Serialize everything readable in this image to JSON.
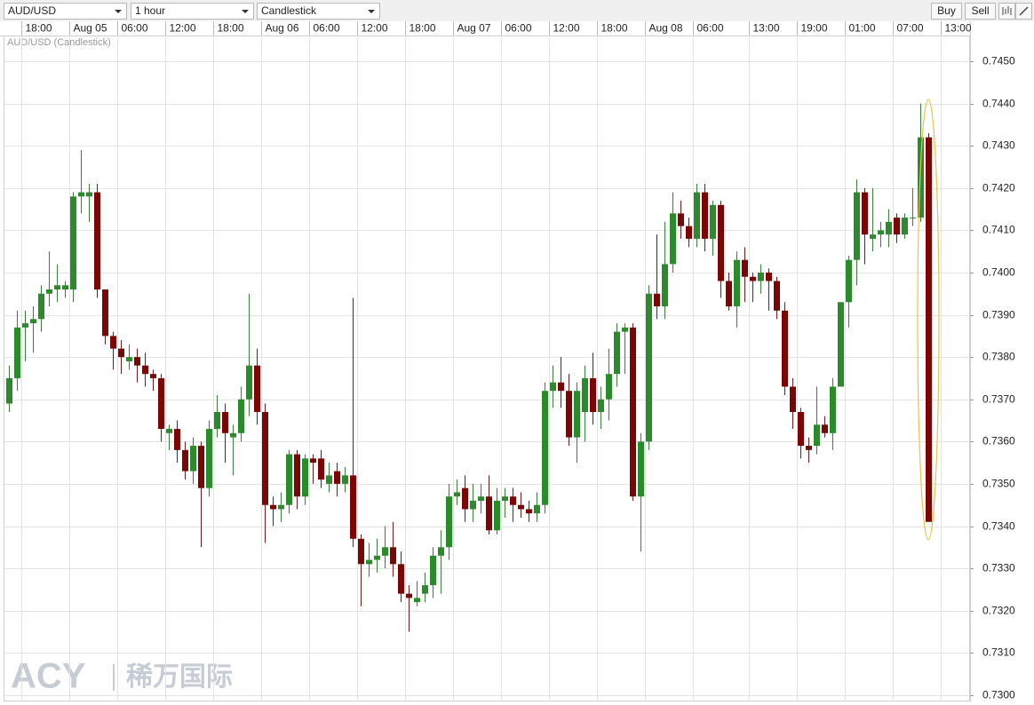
{
  "toolbar": {
    "symbol": "AUD/USD",
    "interval": "1 hour",
    "chart_style": "Candlestick",
    "buy": "Buy",
    "sell": "Sell"
  },
  "watermark": {
    "brand": "ACY",
    "name": "稀万国际"
  },
  "chart_data": {
    "type": "candlestick",
    "title": "AUD/USD (Candlestick)",
    "up_color": "#2b8a2b",
    "down_color": "#7a0606",
    "grid": true,
    "ylim": [
      0.72985,
      0.74561
    ],
    "yticks": [
      {
        "value": 0.73,
        "label": "0.7300"
      },
      {
        "value": 0.731,
        "label": "0.7310"
      },
      {
        "value": 0.732,
        "label": "0.7320"
      },
      {
        "value": 0.733,
        "label": "0.7330"
      },
      {
        "value": 0.734,
        "label": "0.7340"
      },
      {
        "value": 0.735,
        "label": "0.7350"
      },
      {
        "value": 0.736,
        "label": "0.7360"
      },
      {
        "value": 0.737,
        "label": "0.7370"
      },
      {
        "value": 0.738,
        "label": "0.7380"
      },
      {
        "value": 0.739,
        "label": "0.7390"
      },
      {
        "value": 0.74,
        "label": "0.7400"
      },
      {
        "value": 0.741,
        "label": "0.7410"
      },
      {
        "value": 0.742,
        "label": "0.7420"
      },
      {
        "value": 0.743,
        "label": "0.7430"
      },
      {
        "value": 0.744,
        "label": "0.7440"
      },
      {
        "value": 0.745,
        "label": "0.7450"
      }
    ],
    "categories": [
      null,
      null,
      "18:00",
      null,
      null,
      null,
      null,
      null,
      "Aug 05",
      null,
      null,
      null,
      null,
      null,
      "06:00",
      null,
      null,
      null,
      null,
      null,
      "12:00",
      null,
      null,
      null,
      null,
      null,
      "18:00",
      null,
      null,
      null,
      null,
      null,
      "Aug 06",
      null,
      null,
      null,
      null,
      null,
      "06:00",
      null,
      null,
      null,
      null,
      null,
      "12:00",
      null,
      null,
      null,
      null,
      null,
      "18:00",
      null,
      null,
      null,
      null,
      null,
      "Aug 07",
      null,
      null,
      null,
      null,
      null,
      "06:00",
      null,
      null,
      null,
      null,
      null,
      "12:00",
      null,
      null,
      null,
      null,
      null,
      "18:00",
      null,
      null,
      null,
      null,
      null,
      "Aug 08",
      null,
      null,
      null,
      null,
      null,
      "06:00",
      null,
      null,
      null,
      null,
      null,
      null,
      "13:00",
      null,
      null,
      null,
      null,
      null,
      "19:00",
      null,
      null,
      null,
      null,
      null,
      "01:00",
      null,
      null,
      null,
      null,
      null,
      "07:00",
      null,
      null,
      null,
      null,
      null,
      "13:00"
    ],
    "open": [
      0.7369,
      0.7375,
      0.7387,
      0.7388,
      0.7389,
      0.7395,
      0.7396,
      0.7396,
      0.7396,
      0.7418,
      0.7418,
      0.7419,
      0.7396,
      0.7385,
      0.7382,
      0.7379,
      0.738,
      0.7378,
      0.7376,
      0.7375,
      0.7362,
      0.7363,
      0.7358,
      0.7353,
      0.7359,
      0.7349,
      0.7363,
      0.7367,
      0.7361,
      0.7362,
      0.737,
      0.7378,
      0.7367,
      0.7345,
      0.7344,
      0.7345,
      0.7357,
      0.7347,
      0.7356,
      0.7356,
      0.735,
      0.7353,
      0.735,
      0.7352,
      0.7337,
      0.7331,
      0.7332,
      0.7333,
      0.7335,
      0.7331,
      0.7324,
      0.7322,
      0.7324,
      0.7326,
      0.7333,
      0.7335,
      0.7347,
      0.7349,
      0.7344,
      0.7346,
      0.7347,
      0.7339,
      0.7346,
      0.7347,
      0.7345,
      0.7344,
      0.7343,
      0.7345,
      0.7372,
      0.7374,
      0.7372,
      0.7361,
      0.7367,
      0.7375,
      0.7367,
      0.737,
      0.7376,
      0.7386,
      0.7387,
      0.7347,
      0.736,
      0.7395,
      0.7392,
      0.7402,
      0.7414,
      0.7411,
      0.7408,
      0.7419,
      0.7408,
      0.7416,
      0.7398,
      0.7392,
      0.7403,
      0.7399,
      0.7398,
      0.74,
      0.7398,
      0.7391,
      0.7373,
      0.7367,
      0.7359,
      0.7359,
      0.7364,
      0.7362,
      0.7373,
      0.7393,
      0.7403,
      0.7419,
      0.7408,
      0.7409,
      0.7409,
      0.7413,
      0.7409,
      0.7413,
      0.7413,
      0.7432,
      null,
      null
    ],
    "high": [
      0.7378,
      0.7391,
      0.7391,
      0.7392,
      0.7397,
      0.7405,
      0.7402,
      0.7398,
      0.7419,
      0.7429,
      0.7421,
      0.7421,
      0.7396,
      0.7386,
      0.7384,
      0.7383,
      0.7382,
      0.7381,
      0.7377,
      0.7376,
      0.7364,
      0.7365,
      0.736,
      0.7361,
      0.736,
      0.7365,
      0.7371,
      0.7369,
      0.7364,
      0.7373,
      0.7395,
      0.7382,
      0.7369,
      0.7347,
      0.7348,
      0.7358,
      0.7358,
      0.7357,
      0.7357,
      0.7358,
      0.7355,
      0.7355,
      0.7354,
      0.7394,
      0.7338,
      0.7336,
      0.7337,
      0.734,
      0.7341,
      0.7334,
      0.7326,
      0.7327,
      0.7329,
      0.7335,
      0.7339,
      0.735,
      0.7351,
      0.7352,
      0.735,
      0.735,
      0.7352,
      0.7349,
      0.7349,
      0.7349,
      0.7348,
      0.7346,
      0.7348,
      0.7374,
      0.7378,
      0.738,
      0.7376,
      0.7374,
      0.7378,
      0.7381,
      0.7373,
      0.7382,
      0.7388,
      0.7388,
      0.7388,
      0.7362,
      0.7397,
      0.7409,
      0.7412,
      0.7419,
      0.7417,
      0.7413,
      0.7421,
      0.7421,
      0.7417,
      0.7417,
      0.74,
      0.7405,
      0.7406,
      0.74,
      0.7402,
      0.7401,
      0.7399,
      0.7393,
      0.7375,
      0.7368,
      0.7361,
      0.7373,
      0.7366,
      0.7375,
      0.7393,
      0.7404,
      0.7422,
      0.742,
      0.742,
      0.7412,
      0.7415,
      0.7414,
      0.7414,
      0.742,
      0.744,
      0.7433,
      null,
      null
    ],
    "low": [
      0.7367,
      0.7372,
      0.7379,
      0.7381,
      0.7386,
      0.7392,
      0.7393,
      0.7394,
      0.7393,
      0.7414,
      0.7412,
      0.7394,
      0.7383,
      0.7377,
      0.7376,
      0.7377,
      0.7374,
      0.7373,
      0.7372,
      0.736,
      0.7358,
      0.7355,
      0.7351,
      0.735,
      0.7335,
      0.7347,
      0.7361,
      0.7355,
      0.7352,
      0.736,
      0.7366,
      0.7364,
      0.7336,
      0.734,
      0.7341,
      0.7343,
      0.7344,
      0.7345,
      0.735,
      0.7349,
      0.7348,
      0.7347,
      0.7348,
      0.7335,
      0.7321,
      0.7328,
      0.7329,
      0.733,
      0.7328,
      0.7322,
      0.7315,
      0.7321,
      0.7322,
      0.7323,
      0.7324,
      0.7332,
      0.7345,
      0.7341,
      0.7341,
      0.7343,
      0.7338,
      0.7338,
      0.7342,
      0.7341,
      0.7342,
      0.7341,
      0.7341,
      0.7343,
      0.7368,
      0.7368,
      0.7359,
      0.7355,
      0.736,
      0.7364,
      0.7363,
      0.7365,
      0.7373,
      0.7376,
      0.7346,
      0.7334,
      0.7358,
      0.7389,
      0.7389,
      0.74,
      0.7408,
      0.7406,
      0.7406,
      0.7405,
      0.7404,
      0.7394,
      0.7391,
      0.7387,
      0.7393,
      0.7393,
      0.7395,
      0.7391,
      0.7389,
      0.7371,
      0.7363,
      0.7356,
      0.7355,
      0.7357,
      0.7361,
      0.7358,
      0.7373,
      0.7387,
      0.7397,
      0.7402,
      0.7405,
      0.7406,
      0.7406,
      0.7407,
      0.7408,
      0.7411,
      0.7412,
      0.7341,
      null,
      null
    ],
    "close": [
      0.7375,
      0.7387,
      0.7388,
      0.7389,
      0.7395,
      0.7396,
      0.7397,
      0.7397,
      0.7418,
      0.7419,
      0.7419,
      0.7396,
      0.7385,
      0.7382,
      0.738,
      0.738,
      0.7378,
      0.7376,
      0.7375,
      0.7363,
      0.7363,
      0.7358,
      0.7353,
      0.7359,
      0.7349,
      0.7363,
      0.7367,
      0.7362,
      0.7362,
      0.737,
      0.7378,
      0.7367,
      0.7345,
      0.7344,
      0.7345,
      0.7357,
      0.7347,
      0.7356,
      0.7355,
      0.7351,
      0.7352,
      0.735,
      0.7352,
      0.7337,
      0.7331,
      0.7332,
      0.7333,
      0.7335,
      0.7331,
      0.7324,
      0.7323,
      0.7323,
      0.7326,
      0.7333,
      0.7335,
      0.7347,
      0.7348,
      0.7344,
      0.7346,
      0.7347,
      0.7339,
      0.7346,
      0.7347,
      0.7345,
      0.7344,
      0.7343,
      0.7345,
      0.7372,
      0.7374,
      0.7372,
      0.7361,
      0.7372,
      0.7375,
      0.7367,
      0.737,
      0.7376,
      0.7386,
      0.7387,
      0.7347,
      0.736,
      0.7395,
      0.7392,
      0.7402,
      0.7414,
      0.7411,
      0.7408,
      0.7419,
      0.7408,
      0.7416,
      0.7398,
      0.7392,
      0.7403,
      0.7399,
      0.7398,
      0.74,
      0.7398,
      0.7391,
      0.7373,
      0.7367,
      0.7359,
      0.7358,
      0.7364,
      0.7362,
      0.7373,
      0.7393,
      0.7403,
      0.7419,
      0.7409,
      0.7409,
      0.741,
      0.7412,
      0.7409,
      0.7413,
      0.7413,
      0.7432,
      0.7341,
      null,
      null
    ]
  }
}
